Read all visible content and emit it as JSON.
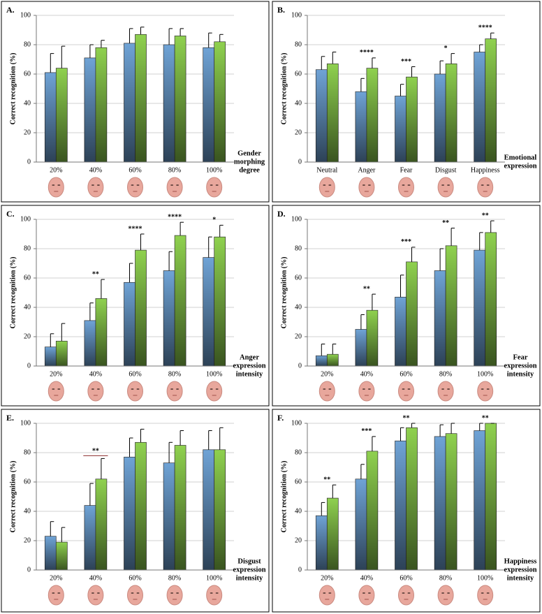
{
  "chart_data": [
    {
      "type": "bar",
      "title": "A.",
      "ylabel": "Correct recognition (%)",
      "xlabel": [
        "Gender",
        "morphing",
        "degree"
      ],
      "categories": [
        "20%",
        "40%",
        "60%",
        "80%",
        "100%"
      ],
      "series": [
        {
          "color": "#6fa3d6",
          "values": [
            61,
            71,
            81,
            80,
            78
          ],
          "errors": [
            13,
            9,
            10,
            11,
            10
          ]
        },
        {
          "color": "#8fd14f",
          "values": [
            64,
            78,
            87,
            86,
            82
          ],
          "errors": [
            15,
            5,
            5,
            5,
            5
          ]
        }
      ],
      "significance": [
        null,
        null,
        null,
        null,
        null
      ],
      "ylim": [
        0,
        100
      ],
      "yticks": [
        0,
        20,
        40,
        60,
        80,
        100
      ],
      "grid": true
    },
    {
      "type": "bar",
      "title": "B.",
      "ylabel": "Correct recognition (%)",
      "xlabel": [
        "Emotional",
        "expression"
      ],
      "categories": [
        "Neutral",
        "Anger",
        "Fear",
        "Disgust",
        "Happiness"
      ],
      "series": [
        {
          "color": "#6fa3d6",
          "values": [
            63,
            48,
            45,
            60,
            75
          ],
          "errors": [
            9,
            9,
            8,
            9,
            5
          ]
        },
        {
          "color": "#8fd14f",
          "values": [
            67,
            64,
            58,
            67,
            84
          ],
          "errors": [
            8,
            7,
            7,
            7,
            4
          ]
        }
      ],
      "significance": [
        null,
        "****",
        "***",
        "*",
        "****"
      ],
      "ylim": [
        0,
        100
      ],
      "yticks": [
        0,
        20,
        40,
        60,
        80,
        100
      ],
      "grid": true
    },
    {
      "type": "bar",
      "title": "C.",
      "ylabel": "Correct recognition (%)",
      "xlabel": [
        "Anger",
        "expression",
        "intensity"
      ],
      "categories": [
        "20%",
        "40%",
        "60%",
        "80%",
        "100%"
      ],
      "series": [
        {
          "color": "#6fa3d6",
          "values": [
            13,
            31,
            57,
            65,
            74
          ],
          "errors": [
            9,
            12,
            13,
            13,
            14
          ]
        },
        {
          "color": "#8fd14f",
          "values": [
            17,
            46,
            79,
            89,
            88
          ],
          "errors": [
            12,
            13,
            11,
            9,
            8
          ]
        }
      ],
      "significance": [
        null,
        "**",
        "****",
        "****",
        "*"
      ],
      "ylim": [
        0,
        100
      ],
      "yticks": [
        0,
        20,
        40,
        60,
        80,
        100
      ],
      "grid": true
    },
    {
      "type": "bar",
      "title": "D.",
      "ylabel": "Correct recognition (%)",
      "xlabel": [
        "Fear",
        "expression",
        "intensity"
      ],
      "categories": [
        "20%",
        "40%",
        "60%",
        "80%",
        "100%"
      ],
      "series": [
        {
          "color": "#6fa3d6",
          "values": [
            7,
            25,
            47,
            65,
            79
          ],
          "errors": [
            8,
            10,
            15,
            15,
            12
          ]
        },
        {
          "color": "#8fd14f",
          "values": [
            8,
            38,
            71,
            82,
            91
          ],
          "errors": [
            7,
            11,
            10,
            12,
            8
          ]
        }
      ],
      "significance": [
        null,
        "**",
        "***",
        "**",
        "**"
      ],
      "ylim": [
        0,
        100
      ],
      "yticks": [
        0,
        20,
        40,
        60,
        80,
        100
      ],
      "grid": true
    },
    {
      "type": "bar",
      "title": "E.",
      "ylabel": "Correct recognition (%)",
      "xlabel": [
        "Disgust",
        "expression",
        "intensity"
      ],
      "categories": [
        "20%",
        "40%",
        "60%",
        "80%",
        "100%"
      ],
      "series": [
        {
          "color": "#6fa3d6",
          "values": [
            23,
            44,
            77,
            73,
            82
          ],
          "errors": [
            10,
            15,
            13,
            14,
            13
          ]
        },
        {
          "color": "#8fd14f",
          "values": [
            19,
            62,
            87,
            85,
            82
          ],
          "errors": [
            10,
            14,
            9,
            10,
            15
          ]
        }
      ],
      "significance": [
        null,
        "**",
        null,
        null,
        null
      ],
      "significance_bracket": true,
      "ylim": [
        0,
        100
      ],
      "yticks": [
        0,
        20,
        40,
        60,
        80,
        100
      ],
      "grid": true
    },
    {
      "type": "bar",
      "title": "F.",
      "ylabel": "Correct recognition (%)",
      "xlabel": [
        "Happiness",
        "expression",
        "intensity"
      ],
      "categories": [
        "20%",
        "40%",
        "60%",
        "80%",
        "100%"
      ],
      "series": [
        {
          "color": "#6fa3d6",
          "values": [
            37,
            62,
            88,
            91,
            95
          ],
          "errors": [
            9,
            10,
            9,
            8,
            5
          ]
        },
        {
          "color": "#8fd14f",
          "values": [
            49,
            81,
            97,
            93,
            100
          ],
          "errors": [
            9,
            10,
            3,
            7,
            0
          ]
        }
      ],
      "significance": [
        "**",
        "***",
        "**",
        null,
        "**"
      ],
      "ylim": [
        0,
        100
      ],
      "yticks": [
        0,
        20,
        40,
        60,
        80,
        100
      ],
      "grid": true
    }
  ]
}
